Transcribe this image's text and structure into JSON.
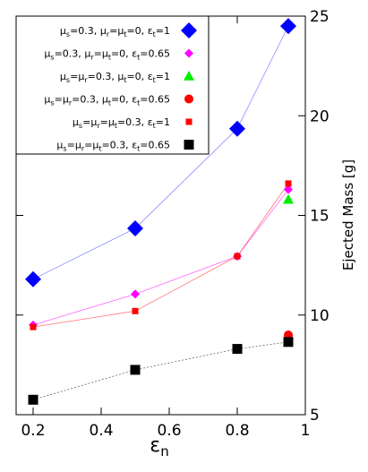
{
  "chart_data": {
    "type": "scatter",
    "xlabel": "ε",
    "xlabel_sub": "n",
    "ylabel": "Ejected Mass [g]",
    "xlim": [
      0.15,
      1.0
    ],
    "ylim": [
      5,
      25
    ],
    "xticks": [
      "0.2",
      "0.4",
      "0.6",
      "0.8",
      "1"
    ],
    "xtick_values": [
      0.2,
      0.4,
      0.6,
      0.8,
      1.0
    ],
    "yticks": [
      "5",
      "10",
      "15",
      "20",
      "25"
    ],
    "ytick_values": [
      5,
      10,
      15,
      20,
      25
    ],
    "legend_position": "top-left",
    "series": [
      {
        "name": "μs=0.3, μr=μt=0, εt=1",
        "legend": [
          [
            "μ",
            "s"
          ],
          [
            "=0.3, ",
            ""
          ],
          [
            "μ",
            "r"
          ],
          [
            "=",
            ""
          ],
          [
            "μ",
            "t"
          ],
          [
            "=0, ",
            ""
          ],
          [
            "ε",
            "t"
          ],
          [
            "=1",
            ""
          ]
        ],
        "marker": "diamond",
        "color": "#0000ff",
        "marker_size": 9,
        "line_color": "#8a8aff",
        "line_dash": "",
        "x": [
          0.2,
          0.5,
          0.8,
          0.95
        ],
        "y": [
          11.8,
          14.35,
          19.35,
          24.5
        ]
      },
      {
        "name": "μs=0.3, μr=μt=0, εt=0.65",
        "legend": [
          [
            "μ",
            "s"
          ],
          [
            "=0.3, ",
            ""
          ],
          [
            "μ",
            "r"
          ],
          [
            "=",
            ""
          ],
          [
            "μ",
            "t"
          ],
          [
            "=0, ",
            ""
          ],
          [
            "ε",
            "t"
          ],
          [
            "=0.65",
            ""
          ]
        ],
        "marker": "diamond",
        "color": "#ff00ff",
        "marker_size": 5,
        "line_color": "#ff66ff",
        "line_dash": "",
        "x": [
          0.2,
          0.5,
          0.8,
          0.95
        ],
        "y": [
          9.5,
          11.05,
          12.95,
          16.3
        ]
      },
      {
        "name": "μs=μr=0.3, μt=0, εt=1",
        "legend": [
          [
            "μ",
            "s"
          ],
          [
            "=",
            ""
          ],
          [
            "μ",
            "r"
          ],
          [
            "=0.3, ",
            ""
          ],
          [
            "μ",
            "t"
          ],
          [
            "=0, ",
            ""
          ],
          [
            "ε",
            "t"
          ],
          [
            "=1",
            ""
          ]
        ],
        "marker": "triangle",
        "color": "#00ee00",
        "marker_size": 6,
        "line_color": "",
        "line_dash": "",
        "x": [
          0.95
        ],
        "y": [
          15.8
        ]
      },
      {
        "name": "μs=μr=0.3, μt=0, εt=0.65",
        "legend": [
          [
            "μ",
            "s"
          ],
          [
            "=",
            ""
          ],
          [
            "μ",
            "r"
          ],
          [
            "=0.3, ",
            ""
          ],
          [
            "μ",
            "t"
          ],
          [
            "=0, ",
            ""
          ],
          [
            "ε",
            "t"
          ],
          [
            "=0.65",
            ""
          ]
        ],
        "marker": "circle",
        "color": "#ff0000",
        "marker_size": 5,
        "line_color": "",
        "line_dash": "",
        "x": [
          0.95
        ],
        "y": [
          9.0
        ]
      },
      {
        "name": "μs=μr=μt=0.3, εt=1",
        "legend": [
          [
            "μ",
            "s"
          ],
          [
            "=",
            ""
          ],
          [
            "μ",
            "r"
          ],
          [
            "=",
            ""
          ],
          [
            "μ",
            "t"
          ],
          [
            "=0.3, ",
            ""
          ],
          [
            "ε",
            "t"
          ],
          [
            "=1",
            ""
          ]
        ],
        "marker": "square",
        "color": "#ff0000",
        "marker_size": 3.5,
        "line_color": "#ff7070",
        "line_dash": "",
        "x": [
          0.2,
          0.5,
          0.8,
          0.95
        ],
        "y": [
          9.4,
          10.2,
          12.95,
          16.6
        ]
      },
      {
        "name": "μs=μr=μt=0.3, εt=0.65",
        "legend": [
          [
            "μ",
            "s"
          ],
          [
            "=",
            ""
          ],
          [
            "μ",
            "r"
          ],
          [
            "=",
            ""
          ],
          [
            "μ",
            "t"
          ],
          [
            "=0.3, ",
            ""
          ],
          [
            "ε",
            "t"
          ],
          [
            "=0.65",
            ""
          ]
        ],
        "marker": "square",
        "color": "#000000",
        "marker_size": 5.5,
        "line_color": "#666666",
        "line_dash": "2,2",
        "x": [
          0.2,
          0.5,
          0.8,
          0.95
        ],
        "y": [
          5.75,
          7.25,
          8.3,
          8.65
        ]
      }
    ]
  }
}
